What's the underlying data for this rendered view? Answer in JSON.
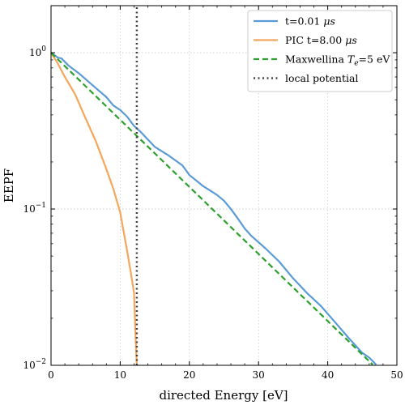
{
  "chart_data": {
    "type": "line",
    "xlabel": "directed Energy [eV]",
    "ylabel": "EEPF",
    "xlim": [
      0,
      50
    ],
    "ylim": [
      0.01,
      2
    ],
    "yscale": "log",
    "grid": true,
    "legend_position": "top-right",
    "x_ticks": [
      0,
      10,
      20,
      30,
      40,
      50
    ],
    "x_tick_labels": [
      "0",
      "10",
      "20",
      "30",
      "40",
      "50"
    ],
    "y_ticks": [
      0.01,
      0.1,
      1
    ],
    "y_tick_labels": [
      "10^-2",
      "10^-1",
      "10^0"
    ],
    "legend_math": {
      "mu_s": "μs",
      "t_e": "T",
      "e_sub": "e"
    },
    "series": [
      {
        "name": "t=0.01",
        "name_unit": "μs",
        "color": "#5b9bd5",
        "style": "solid",
        "points": [
          [
            0,
            1.0
          ],
          [
            1,
            0.93
          ],
          [
            1.5,
            0.92
          ],
          [
            2.5,
            0.83
          ],
          [
            4,
            0.74
          ],
          [
            6,
            0.62
          ],
          [
            8,
            0.52
          ],
          [
            9,
            0.46
          ],
          [
            10,
            0.43
          ],
          [
            11,
            0.39
          ],
          [
            12,
            0.34
          ],
          [
            13,
            0.31
          ],
          [
            15,
            0.25
          ],
          [
            17,
            0.22
          ],
          [
            19,
            0.19
          ],
          [
            20,
            0.165
          ],
          [
            22,
            0.14
          ],
          [
            24,
            0.123
          ],
          [
            25,
            0.113
          ],
          [
            26,
            0.1
          ],
          [
            27,
            0.087
          ],
          [
            28,
            0.075
          ],
          [
            29,
            0.067
          ],
          [
            31,
            0.056
          ],
          [
            33,
            0.046
          ],
          [
            35,
            0.036
          ],
          [
            37,
            0.029
          ],
          [
            39,
            0.024
          ],
          [
            41,
            0.019
          ],
          [
            43,
            0.015
          ],
          [
            45,
            0.012
          ],
          [
            46,
            0.0112
          ],
          [
            47,
            0.0101
          ]
        ]
      },
      {
        "name": "PIC t=8.00",
        "name_unit": "μs",
        "color": "#f4a65a",
        "style": "solid",
        "points": [
          [
            0,
            1.0
          ],
          [
            1,
            0.85
          ],
          [
            2,
            0.7
          ],
          [
            3.5,
            0.54
          ],
          [
            5,
            0.38
          ],
          [
            6.5,
            0.27
          ],
          [
            8,
            0.18
          ],
          [
            9,
            0.135
          ],
          [
            10,
            0.095
          ],
          [
            11,
            0.054
          ],
          [
            11.5,
            0.04
          ],
          [
            12,
            0.029
          ],
          [
            12.2,
            0.016
          ],
          [
            12.4,
            0.0101
          ]
        ]
      },
      {
        "name": "Maxwellina",
        "name_math": "T",
        "name_sub": "e",
        "name_suffix": "=5 eV",
        "color": "#2ca02c",
        "style": "dashed",
        "points": [
          [
            0,
            1.0
          ],
          [
            46.5,
            0.0101
          ]
        ]
      },
      {
        "name": "local potential",
        "color": "#444444",
        "style": "dotted",
        "points": [
          [
            12.4,
            0.01
          ],
          [
            12.4,
            2
          ]
        ]
      }
    ]
  }
}
